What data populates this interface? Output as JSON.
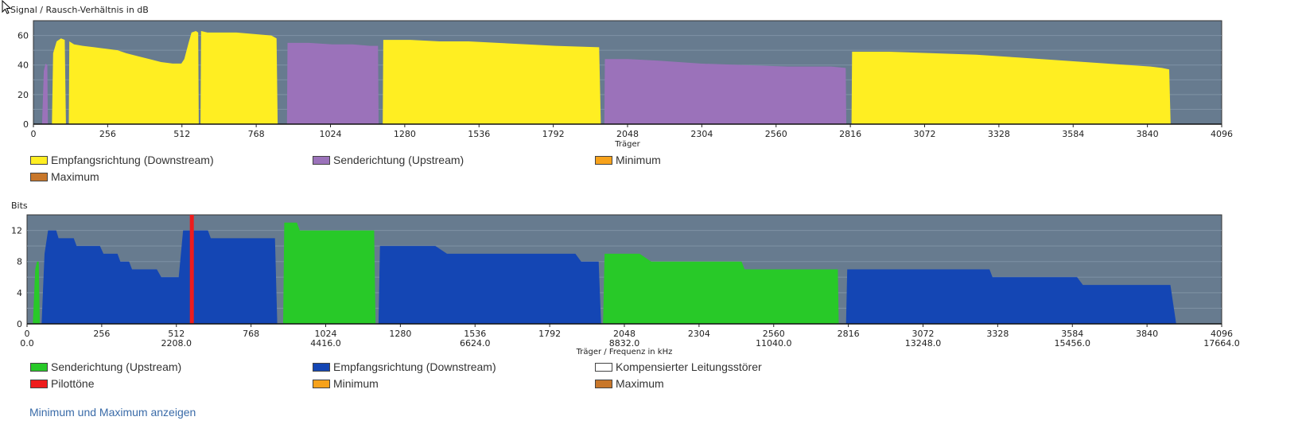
{
  "colors": {
    "plot_bg": "#677b8f",
    "gridline": "#7f92a5",
    "downstream_snr": "#ffee22",
    "upstream_snr": "#9b72ba",
    "upstream_bits": "#28c928",
    "downstream_bits": "#1446b4",
    "pilot": "#ee1c1c",
    "minimum": "#f7a21b",
    "maximum": "#c8772a",
    "compensated": "#ffffff"
  },
  "chart_data": [
    {
      "id": "snr",
      "type": "area",
      "title": "Signal / Rausch-Verhältnis in dB",
      "xlabel": "Träger",
      "ylabel": "",
      "xlim": [
        0,
        4096
      ],
      "ylim": [
        0,
        70
      ],
      "x_ticks": [
        0,
        256,
        512,
        768,
        1024,
        1280,
        1536,
        1792,
        2048,
        2304,
        2560,
        2816,
        3072,
        3328,
        3584,
        3840,
        4096
      ],
      "y_ticks": [
        0,
        20,
        40,
        60
      ],
      "grid": true,
      "series": [
        {
          "name": "Senderichtung (Upstream)",
          "color_key": "upstream_snr",
          "points": [
            [
              30,
              0
            ],
            [
              36,
              36
            ],
            [
              42,
              41
            ],
            [
              48,
              40
            ],
            [
              50,
              0
            ]
          ]
        },
        {
          "name": "Empfangsrichtung (Downstream)",
          "color_key": "downstream_snr",
          "points": [
            [
              64,
              0
            ],
            [
              68,
              48
            ],
            [
              80,
              56
            ],
            [
              95,
              58
            ],
            [
              108,
              57
            ],
            [
              112,
              0
            ]
          ]
        },
        {
          "name": "Empfangsrichtung (Downstream)",
          "color_key": "downstream_snr",
          "points": [
            [
              122,
              0
            ],
            [
              124,
              56
            ],
            [
              140,
              54
            ],
            [
              170,
              53
            ],
            [
              210,
              52
            ],
            [
              250,
              51
            ],
            [
              290,
              50
            ],
            [
              320,
              48
            ],
            [
              360,
              46
            ],
            [
              400,
              44
            ],
            [
              440,
              42
            ],
            [
              480,
              41
            ],
            [
              510,
              41
            ],
            [
              520,
              44
            ],
            [
              535,
              55
            ],
            [
              545,
              62
            ],
            [
              560,
              63
            ],
            [
              568,
              62
            ],
            [
              570,
              0
            ]
          ]
        },
        {
          "name": "Empfangsrichtung (Downstream)",
          "color_key": "downstream_snr",
          "points": [
            [
              576,
              0
            ],
            [
              578,
              63
            ],
            [
              600,
              62
            ],
            [
              700,
              62
            ],
            [
              760,
              61
            ],
            [
              820,
              60
            ],
            [
              838,
              58
            ],
            [
              842,
              0
            ]
          ]
        },
        {
          "name": "Senderichtung (Upstream)",
          "color_key": "upstream_snr",
          "points": [
            [
              874,
              0
            ],
            [
              876,
              55
            ],
            [
              950,
              55
            ],
            [
              1030,
              54
            ],
            [
              1100,
              54
            ],
            [
              1160,
              53
            ],
            [
              1188,
              53
            ],
            [
              1190,
              0
            ]
          ]
        },
        {
          "name": "Empfangsrichtung (Downstream)",
          "color_key": "downstream_snr",
          "points": [
            [
              1204,
              0
            ],
            [
              1206,
              57
            ],
            [
              1300,
              57
            ],
            [
              1400,
              56
            ],
            [
              1500,
              56
            ],
            [
              1600,
              55
            ],
            [
              1700,
              54
            ],
            [
              1800,
              53
            ],
            [
              1950,
              52
            ],
            [
              1956,
              0
            ]
          ]
        },
        {
          "name": "Senderichtung (Upstream)",
          "color_key": "upstream_snr",
          "points": [
            [
              1968,
              0
            ],
            [
              1970,
              44
            ],
            [
              2050,
              44
            ],
            [
              2150,
              43
            ],
            [
              2300,
              41
            ],
            [
              2450,
              40
            ],
            [
              2600,
              39
            ],
            [
              2750,
              39
            ],
            [
              2800,
              38
            ],
            [
              2802,
              0
            ]
          ]
        },
        {
          "name": "Empfangsrichtung (Downstream)",
          "color_key": "downstream_snr",
          "points": [
            [
              2820,
              0
            ],
            [
              2822,
              49
            ],
            [
              2950,
              49
            ],
            [
              3100,
              48
            ],
            [
              3250,
              47
            ],
            [
              3400,
              45
            ],
            [
              3550,
              43
            ],
            [
              3700,
              41
            ],
            [
              3850,
              39
            ],
            [
              3890,
              38
            ],
            [
              3915,
              37
            ],
            [
              3920,
              0
            ]
          ]
        }
      ]
    },
    {
      "id": "bits",
      "type": "area",
      "title": "Bits",
      "xlabel": "Träger / Frequenz in kHz",
      "ylabel": "",
      "xlim": [
        0,
        4096
      ],
      "ylim": [
        0,
        14
      ],
      "x_ticks": [
        0,
        256,
        512,
        768,
        1024,
        1280,
        1536,
        1792,
        2048,
        2304,
        2560,
        2816,
        3072,
        3328,
        3584,
        3840,
        4096
      ],
      "x_ticks_khz": [
        "0.0",
        "",
        "",
        "",
        "2208.0",
        "",
        "",
        "",
        "4416.0",
        "",
        "",
        "",
        "6624.0",
        "",
        "",
        "",
        "8832.0",
        "",
        "",
        "",
        "11040.0",
        "",
        "",
        "",
        "13248.0",
        "",
        "",
        "",
        "15456.0",
        "",
        "",
        "",
        "17664.0"
      ],
      "x_ticks_khz_positions": [
        0,
        512,
        1024,
        1536,
        2048,
        2560,
        3072,
        3584,
        4096
      ],
      "khz_labels": [
        "0.0",
        "2208.0",
        "4416.0",
        "6624.0",
        "8832.0",
        "11040.0",
        "13248.0",
        "15456.0",
        "17664.0"
      ],
      "y_ticks": [
        0,
        4,
        8,
        12
      ],
      "grid": true,
      "series": [
        {
          "name": "Senderichtung (Upstream)",
          "color_key": "upstream_bits",
          "points": [
            [
              20,
              0
            ],
            [
              28,
              7
            ],
            [
              34,
              8
            ],
            [
              40,
              8
            ],
            [
              44,
              0
            ]
          ]
        },
        {
          "name": "Empfangsrichtung (Downstream)",
          "color_key": "downstream_bits",
          "points": [
            [
              50,
              0
            ],
            [
              60,
              9
            ],
            [
              72,
              12
            ],
            [
              100,
              12
            ],
            [
              108,
              11
            ],
            [
              160,
              11
            ],
            [
              170,
              10
            ],
            [
              250,
              10
            ],
            [
              262,
              9
            ],
            [
              310,
              9
            ],
            [
              320,
              8
            ],
            [
              350,
              8
            ],
            [
              360,
              7
            ],
            [
              445,
              7
            ],
            [
              460,
              6
            ],
            [
              520,
              6
            ],
            [
              535,
              12
            ],
            [
              570,
              12
            ],
            [
              620,
              12
            ],
            [
              630,
              11
            ],
            [
              700,
              11
            ],
            [
              850,
              11
            ],
            [
              858,
              0
            ]
          ]
        },
        {
          "name": "Senderichtung (Upstream)",
          "color_key": "upstream_bits",
          "points": [
            [
              878,
              0
            ],
            [
              882,
              13
            ],
            [
              925,
              13
            ],
            [
              935,
              12
            ],
            [
              1150,
              12
            ],
            [
              1190,
              12
            ],
            [
              1195,
              0
            ]
          ]
        },
        {
          "name": "Empfangsrichtung (Downstream)",
          "color_key": "downstream_bits",
          "points": [
            [
              1205,
              0
            ],
            [
              1210,
              10
            ],
            [
              1400,
              10
            ],
            [
              1440,
              9
            ],
            [
              1600,
              9
            ],
            [
              1880,
              9
            ],
            [
              1900,
              8
            ],
            [
              1960,
              8
            ],
            [
              1968,
              0
            ]
          ]
        },
        {
          "name": "Senderichtung (Upstream)",
          "color_key": "upstream_bits",
          "points": [
            [
              1975,
              0
            ],
            [
              1980,
              9
            ],
            [
              2100,
              9
            ],
            [
              2140,
              8
            ],
            [
              2300,
              8
            ],
            [
              2450,
              8
            ],
            [
              2460,
              7
            ],
            [
              2780,
              7
            ],
            [
              2783,
              0
            ]
          ]
        },
        {
          "name": "Empfangsrichtung (Downstream)",
          "color_key": "downstream_bits",
          "points": [
            [
              2808,
              0
            ],
            [
              2812,
              7
            ],
            [
              3000,
              7
            ],
            [
              3200,
              7
            ],
            [
              3300,
              7
            ],
            [
              3310,
              6
            ],
            [
              3400,
              6
            ],
            [
              3600,
              6
            ],
            [
              3620,
              5
            ],
            [
              3850,
              5
            ],
            [
              3920,
              5
            ],
            [
              3940,
              0
            ]
          ]
        }
      ],
      "pilot_tones": [
        {
          "name": "Pilottöne",
          "x": 565,
          "value": 14
        }
      ]
    }
  ],
  "legend_snr": [
    {
      "label": "Empfangsrichtung (Downstream)",
      "color_key": "downstream_snr"
    },
    {
      "label": "Senderichtung (Upstream)",
      "color_key": "upstream_snr"
    },
    {
      "label": "Minimum",
      "color_key": "minimum"
    },
    {
      "label": "Maximum",
      "color_key": "maximum"
    }
  ],
  "legend_bits": [
    {
      "label": "Senderichtung (Upstream)",
      "color_key": "upstream_bits"
    },
    {
      "label": "Empfangsrichtung (Downstream)",
      "color_key": "downstream_bits"
    },
    {
      "label": "Kompensierter Leitungsstörer",
      "color_key": "compensated"
    },
    {
      "label": "Pilottöne",
      "color_key": "pilot"
    },
    {
      "label": "Minimum",
      "color_key": "minimum"
    },
    {
      "label": "Maximum",
      "color_key": "maximum"
    }
  ],
  "toggle_link_label": "Minimum und Maximum anzeigen"
}
